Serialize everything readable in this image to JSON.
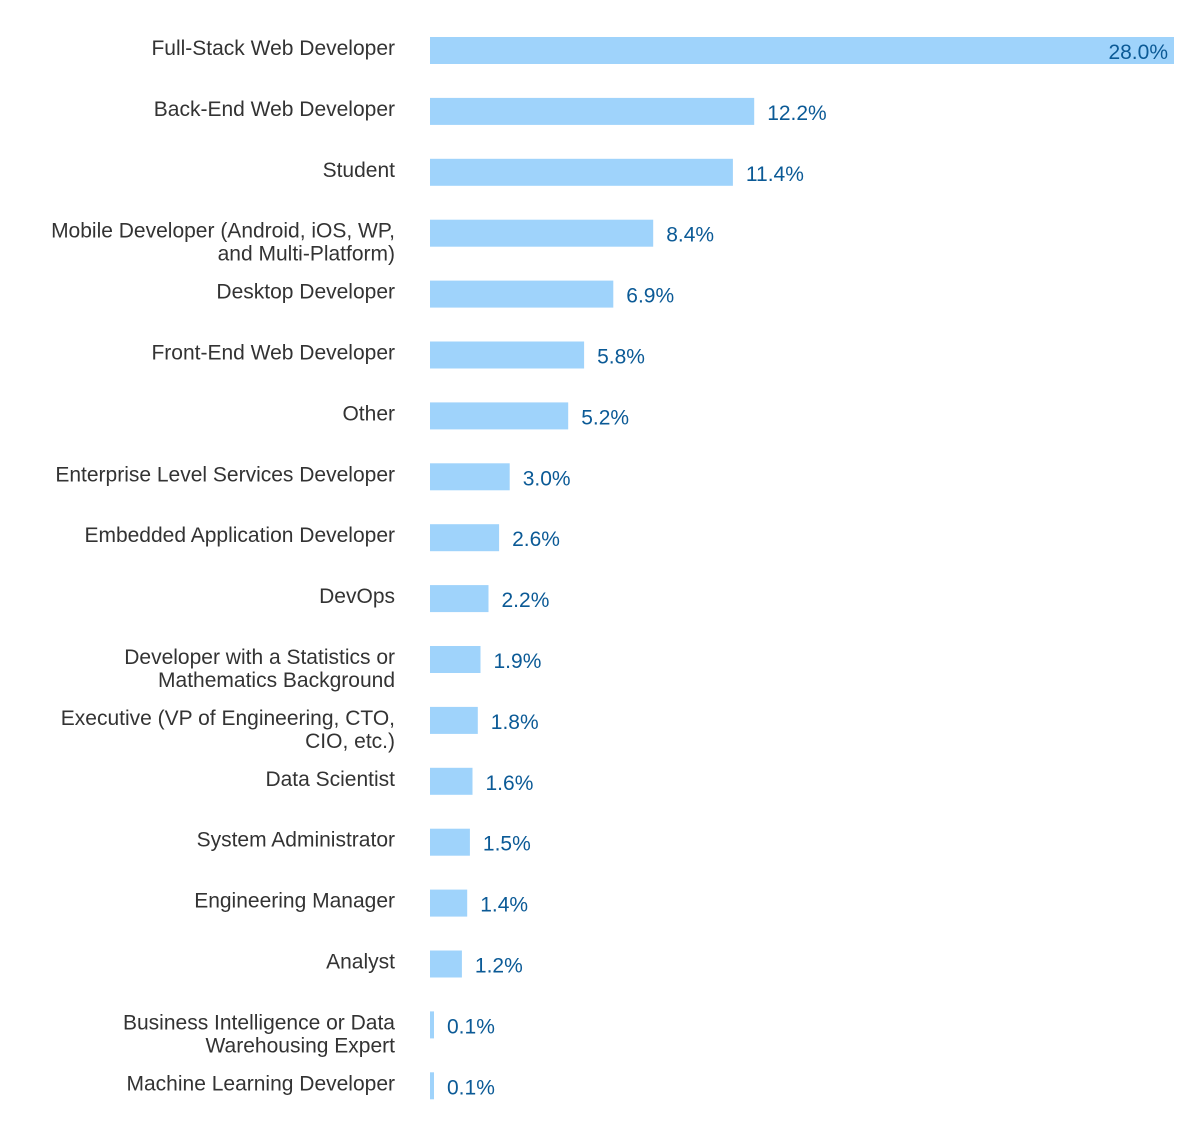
{
  "chart_data": {
    "type": "bar",
    "orientation": "horizontal",
    "title": "",
    "xlabel": "",
    "ylabel": "",
    "xlim": [
      0,
      28.0
    ],
    "grid": false,
    "bar_color": "#9fd3fb",
    "value_label_color": "#0b5a96",
    "category_label_color": "#333333",
    "categories": [
      [
        "Full-Stack Web Developer"
      ],
      [
        "Back-End Web Developer"
      ],
      [
        "Student"
      ],
      [
        "Mobile Developer (Android, iOS, WP,",
        "and Multi-Platform)"
      ],
      [
        "Desktop Developer"
      ],
      [
        "Front-End Web Developer"
      ],
      [
        "Other"
      ],
      [
        "Enterprise Level Services Developer"
      ],
      [
        "Embedded Application Developer"
      ],
      [
        "DevOps"
      ],
      [
        "Developer with a Statistics or",
        "Mathematics Background"
      ],
      [
        "Executive (VP of Engineering, CTO,",
        "CIO, etc.)"
      ],
      [
        "Data Scientist"
      ],
      [
        "System Administrator"
      ],
      [
        "Engineering Manager"
      ],
      [
        "Analyst"
      ],
      [
        "Business Intelligence or Data",
        "Warehousing Expert"
      ],
      [
        "Machine Learning Developer"
      ]
    ],
    "values": [
      28.0,
      12.2,
      11.4,
      8.4,
      6.9,
      5.8,
      5.2,
      3.0,
      2.6,
      2.2,
      1.9,
      1.8,
      1.6,
      1.5,
      1.4,
      1.2,
      0.1,
      0.1
    ],
    "value_labels": [
      "28.0%",
      "12.2%",
      "11.4%",
      "8.4%",
      "6.9%",
      "5.8%",
      "5.2%",
      "3.0%",
      "2.6%",
      "2.2%",
      "1.9%",
      "1.8%",
      "1.6%",
      "1.5%",
      "1.4%",
      "1.2%",
      "0.1%",
      "0.1%"
    ]
  }
}
